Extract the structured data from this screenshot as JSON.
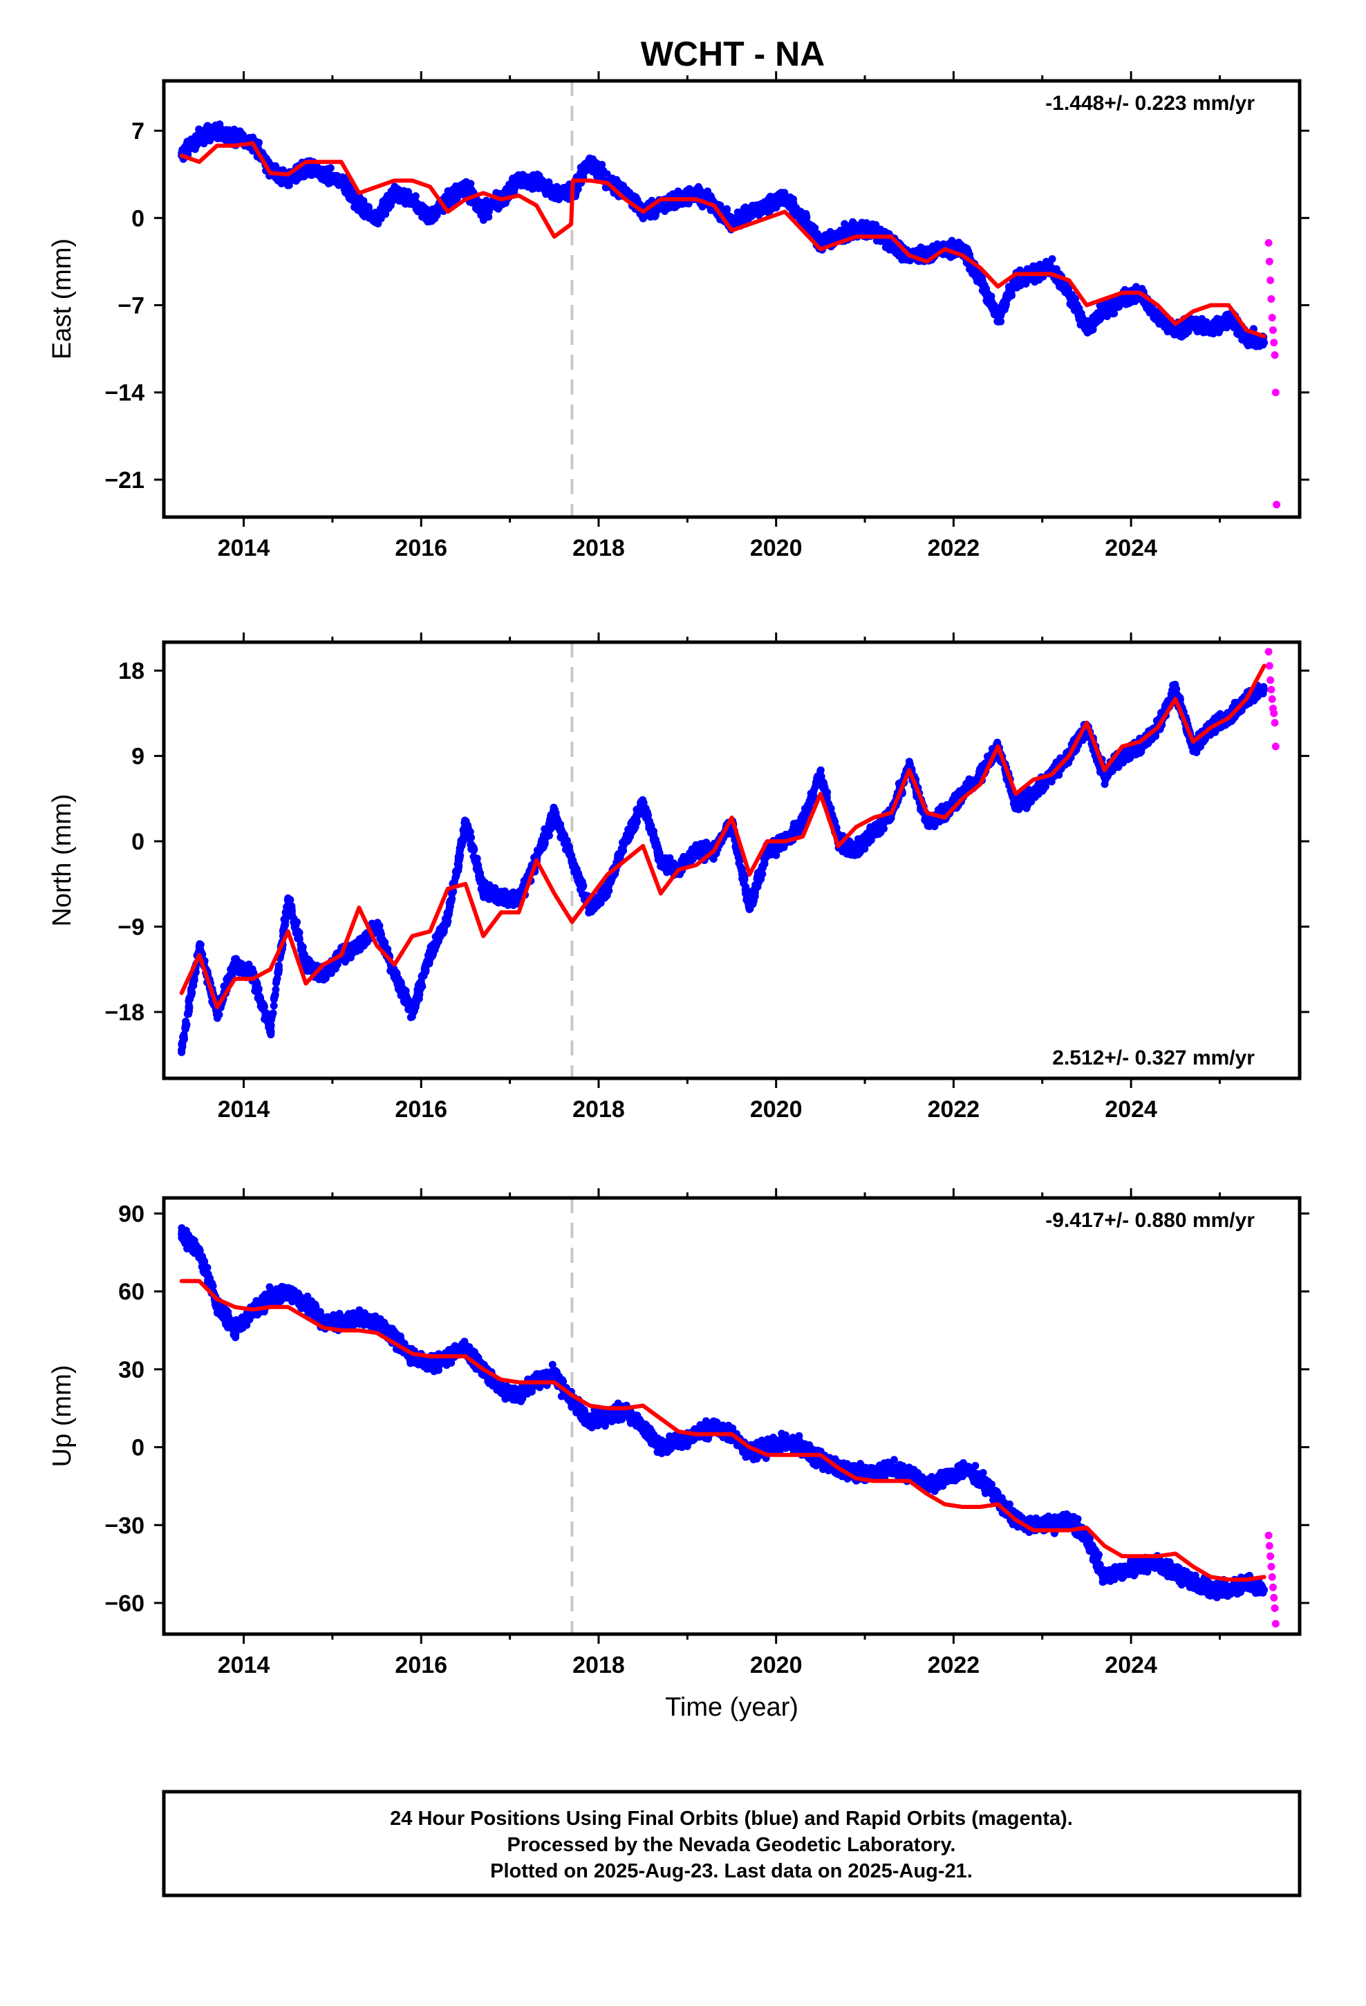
{
  "page": {
    "title": "WCHT - NA"
  },
  "footer": {
    "lines": [
      "24 Hour Positions Using Final Orbits (blue) and Rapid Orbits (magenta).",
      "Processed by the Nevada Geodetic Laboratory.",
      "Plotted on 2025-Aug-23. Last data on 2025-Aug-21."
    ]
  },
  "colors": {
    "final_orbits": "#0000ff",
    "rapid_orbits": "#ff00ff",
    "model": "#ff0000",
    "equipment_change": "#c8c8c8"
  },
  "chart_data": [
    {
      "type": "scatter",
      "component": "East",
      "title": "WCHT - NA",
      "xlabel": "",
      "ylabel": "East (mm)",
      "xlim": [
        2013.1,
        2025.9
      ],
      "ylim": [
        -24.0,
        11.0
      ],
      "xticks": [
        2014,
        2016,
        2018,
        2020,
        2022,
        2024
      ],
      "xtick_labels": [
        "2014",
        "2016",
        "2018",
        "2020",
        "2022",
        "2024"
      ],
      "yticks": [
        7,
        0,
        -7,
        -14,
        -21
      ],
      "ytick_labels": [
        "7",
        "0",
        "−7",
        "−14",
        "−21"
      ],
      "rate_text": "-1.448+/- 0.223 mm/yr",
      "rate_position": "top-right",
      "equipment_change_year": 2017.7,
      "series": [
        {
          "kind": "final_orbits",
          "x": [
            2013.3,
            2013.5,
            2013.7,
            2013.9,
            2014.1,
            2014.3,
            2014.5,
            2014.7,
            2014.9,
            2015.1,
            2015.3,
            2015.5,
            2015.7,
            2015.9,
            2016.1,
            2016.3,
            2016.5,
            2016.7,
            2016.9,
            2017.1,
            2017.3,
            2017.5,
            2017.7,
            2017.9,
            2018.1,
            2018.3,
            2018.5,
            2018.7,
            2018.9,
            2019.1,
            2019.3,
            2019.5,
            2019.7,
            2019.9,
            2020.1,
            2020.3,
            2020.5,
            2020.7,
            2020.9,
            2021.1,
            2021.3,
            2021.5,
            2021.7,
            2021.9,
            2022.1,
            2022.3,
            2022.5,
            2022.7,
            2022.9,
            2023.1,
            2023.3,
            2023.5,
            2023.7,
            2023.9,
            2024.1,
            2024.3,
            2024.5,
            2024.7,
            2024.9,
            2025.1,
            2025.3,
            2025.5
          ],
          "y": [
            5.0,
            6.5,
            7.0,
            6.5,
            6.0,
            4.0,
            3.0,
            4.0,
            3.5,
            3.0,
            1.0,
            0.0,
            2.0,
            1.5,
            0.0,
            1.5,
            2.5,
            0.5,
            1.5,
            3.0,
            3.0,
            2.0,
            2.0,
            4.5,
            3.0,
            2.0,
            0.5,
            1.0,
            1.5,
            2.0,
            1.0,
            -0.5,
            0.5,
            1.0,
            1.5,
            0.0,
            -2.0,
            -1.5,
            -1.0,
            -1.0,
            -2.0,
            -3.0,
            -3.0,
            -2.5,
            -2.5,
            -5.0,
            -8.0,
            -5.0,
            -4.5,
            -4.0,
            -6.0,
            -9.0,
            -7.5,
            -6.5,
            -6.0,
            -8.0,
            -9.0,
            -8.5,
            -9.0,
            -8.0,
            -9.5,
            -10.0
          ]
        },
        {
          "kind": "rapid_orbits",
          "x": [
            2025.55,
            2025.56,
            2025.57,
            2025.58,
            2025.59,
            2025.6,
            2025.61,
            2025.62,
            2025.63,
            2025.64
          ],
          "y": [
            -2.0,
            -3.5,
            -5.0,
            -6.5,
            -8.0,
            -9.0,
            -10.0,
            -11.0,
            -14.0,
            -23.0
          ]
        },
        {
          "kind": "model",
          "x": [
            2013.3,
            2013.5,
            2013.7,
            2013.9,
            2014.1,
            2014.3,
            2014.5,
            2014.7,
            2014.9,
            2015.1,
            2015.3,
            2015.5,
            2015.7,
            2015.9,
            2016.1,
            2016.3,
            2016.5,
            2016.7,
            2016.9,
            2017.1,
            2017.3,
            2017.5,
            2017.69,
            2017.71,
            2017.9,
            2018.1,
            2018.3,
            2018.5,
            2018.7,
            2018.9,
            2019.1,
            2019.3,
            2019.5,
            2019.7,
            2019.9,
            2020.1,
            2020.3,
            2020.5,
            2020.7,
            2020.9,
            2021.1,
            2021.3,
            2021.5,
            2021.7,
            2021.9,
            2022.1,
            2022.3,
            2022.5,
            2022.7,
            2022.9,
            2023.1,
            2023.3,
            2023.5,
            2023.7,
            2023.9,
            2024.1,
            2024.3,
            2024.5,
            2024.7,
            2024.9,
            2025.1,
            2025.3,
            2025.5
          ],
          "y": [
            5.0,
            4.5,
            5.8,
            5.8,
            6.0,
            3.6,
            3.5,
            4.5,
            4.5,
            4.5,
            2.0,
            2.5,
            3.0,
            3.0,
            2.5,
            0.5,
            1.5,
            2.0,
            1.5,
            1.8,
            1.0,
            -1.5,
            -0.5,
            3.0,
            3.0,
            2.8,
            1.5,
            0.5,
            1.5,
            1.5,
            1.5,
            1.0,
            -1.0,
            -0.5,
            0.0,
            0.5,
            -1.0,
            -2.5,
            -2.0,
            -1.5,
            -1.5,
            -1.5,
            -3.0,
            -3.5,
            -2.5,
            -3.0,
            -4.0,
            -5.5,
            -4.5,
            -4.5,
            -4.5,
            -5.0,
            -7.0,
            -6.5,
            -6.0,
            -6.0,
            -7.0,
            -8.5,
            -7.5,
            -7.0,
            -7.0,
            -9.0,
            -9.5
          ]
        }
      ]
    },
    {
      "type": "scatter",
      "component": "North",
      "xlabel": "",
      "ylabel": "North (mm)",
      "xlim": [
        2013.1,
        2025.9
      ],
      "ylim": [
        -25.0,
        21.0
      ],
      "xticks": [
        2014,
        2016,
        2018,
        2020,
        2022,
        2024
      ],
      "xtick_labels": [
        "2014",
        "2016",
        "2018",
        "2020",
        "2022",
        "2024"
      ],
      "yticks": [
        18,
        9,
        0,
        -9,
        -18
      ],
      "ytick_labels": [
        "18",
        "9",
        "0",
        "−9",
        "−18"
      ],
      "rate_text": "2.512+/- 0.327 mm/yr",
      "rate_position": "bottom-right",
      "equipment_change_year": 2017.7,
      "series": [
        {
          "kind": "final_orbits",
          "x": [
            2013.3,
            2013.5,
            2013.7,
            2013.9,
            2014.1,
            2014.3,
            2014.5,
            2014.7,
            2014.9,
            2015.1,
            2015.3,
            2015.5,
            2015.7,
            2015.9,
            2016.1,
            2016.3,
            2016.5,
            2016.7,
            2016.9,
            2017.1,
            2017.3,
            2017.5,
            2017.7,
            2017.9,
            2018.1,
            2018.3,
            2018.5,
            2018.7,
            2018.9,
            2019.1,
            2019.3,
            2019.5,
            2019.7,
            2019.9,
            2020.1,
            2020.3,
            2020.5,
            2020.7,
            2020.9,
            2021.1,
            2021.3,
            2021.5,
            2021.7,
            2021.9,
            2022.1,
            2022.3,
            2022.5,
            2022.7,
            2022.9,
            2023.1,
            2023.3,
            2023.5,
            2023.7,
            2023.9,
            2024.1,
            2024.3,
            2024.5,
            2024.7,
            2024.9,
            2025.1,
            2025.3,
            2025.5
          ],
          "y": [
            -22.0,
            -11.0,
            -18.0,
            -13.0,
            -14.0,
            -20.0,
            -6.0,
            -13.0,
            -14.0,
            -12.0,
            -11.0,
            -9.0,
            -14.0,
            -18.0,
            -12.0,
            -8.0,
            2.0,
            -5.0,
            -6.0,
            -6.0,
            -2.0,
            3.0,
            -2.0,
            -7.0,
            -5.0,
            0.0,
            4.0,
            -2.0,
            -3.0,
            -1.0,
            -1.0,
            2.0,
            -7.0,
            -1.0,
            0.0,
            2.0,
            7.0,
            0.0,
            -1.0,
            1.0,
            3.0,
            8.0,
            2.0,
            3.0,
            5.0,
            7.0,
            10.0,
            4.0,
            5.0,
            7.0,
            9.0,
            12.0,
            7.0,
            9.0,
            10.0,
            12.0,
            16.0,
            10.0,
            12.0,
            13.0,
            15.0,
            16.0
          ]
        },
        {
          "kind": "rapid_orbits",
          "x": [
            2025.55,
            2025.56,
            2025.57,
            2025.58,
            2025.59,
            2025.6,
            2025.61,
            2025.62,
            2025.63
          ],
          "y": [
            20.0,
            18.5,
            17.0,
            16.0,
            15.0,
            14.0,
            13.5,
            12.5,
            10.0
          ]
        },
        {
          "kind": "model",
          "x": [
            2013.3,
            2013.5,
            2013.7,
            2013.9,
            2014.1,
            2014.3,
            2014.5,
            2014.7,
            2014.9,
            2015.1,
            2015.3,
            2015.5,
            2015.7,
            2015.9,
            2016.1,
            2016.3,
            2016.5,
            2016.7,
            2016.9,
            2017.1,
            2017.3,
            2017.5,
            2017.7,
            2017.9,
            2018.1,
            2018.3,
            2018.5,
            2018.7,
            2018.9,
            2019.1,
            2019.3,
            2019.5,
            2019.7,
            2019.9,
            2020.1,
            2020.3,
            2020.5,
            2020.7,
            2020.9,
            2021.1,
            2021.3,
            2021.5,
            2021.7,
            2021.9,
            2022.1,
            2022.3,
            2022.5,
            2022.7,
            2022.9,
            2023.1,
            2023.3,
            2023.5,
            2023.7,
            2023.9,
            2024.1,
            2024.3,
            2024.5,
            2024.7,
            2024.9,
            2025.1,
            2025.3,
            2025.5
          ],
          "y": [
            -16.0,
            -12.0,
            -17.5,
            -14.5,
            -14.5,
            -13.5,
            -9.5,
            -15.0,
            -13.0,
            -12.0,
            -7.0,
            -11.0,
            -13.0,
            -10.0,
            -9.5,
            -5.0,
            -4.5,
            -10.0,
            -7.5,
            -7.5,
            -2.0,
            -5.5,
            -8.5,
            -6.0,
            -3.5,
            -2.0,
            -0.5,
            -5.5,
            -3.0,
            -2.5,
            -1.0,
            2.5,
            -3.5,
            0.0,
            0.0,
            0.5,
            5.0,
            -0.5,
            1.5,
            2.5,
            3.0,
            7.5,
            3.0,
            2.5,
            4.5,
            6.0,
            10.0,
            5.0,
            6.5,
            7.0,
            9.0,
            12.5,
            7.5,
            10.0,
            10.5,
            12.0,
            15.0,
            10.5,
            12.0,
            13.0,
            15.0,
            18.5
          ]
        }
      ]
    },
    {
      "type": "scatter",
      "component": "Up",
      "xlabel": "Time (year)",
      "ylabel": "Up (mm)",
      "xlim": [
        2013.1,
        2025.9
      ],
      "ylim": [
        -72.0,
        96.0
      ],
      "xticks": [
        2014,
        2016,
        2018,
        2020,
        2022,
        2024
      ],
      "xtick_labels": [
        "2014",
        "2016",
        "2018",
        "2020",
        "2022",
        "2024"
      ],
      "yticks": [
        90,
        60,
        30,
        0,
        -30,
        -60
      ],
      "ytick_labels": [
        "90",
        "60",
        "30",
        "0",
        "−30",
        "−60"
      ],
      "rate_text": "-9.417+/- 0.880 mm/yr",
      "rate_position": "top-right",
      "equipment_change_year": 2017.7,
      "series": [
        {
          "kind": "final_orbits",
          "x": [
            2013.3,
            2013.5,
            2013.7,
            2013.9,
            2014.1,
            2014.3,
            2014.5,
            2014.7,
            2014.9,
            2015.1,
            2015.3,
            2015.5,
            2015.7,
            2015.9,
            2016.1,
            2016.3,
            2016.5,
            2016.7,
            2016.9,
            2017.1,
            2017.3,
            2017.5,
            2017.7,
            2017.9,
            2018.1,
            2018.3,
            2018.5,
            2018.7,
            2018.9,
            2019.1,
            2019.3,
            2019.5,
            2019.7,
            2019.9,
            2020.1,
            2020.3,
            2020.5,
            2020.7,
            2020.9,
            2021.1,
            2021.3,
            2021.5,
            2021.7,
            2021.9,
            2022.1,
            2022.3,
            2022.5,
            2022.7,
            2022.9,
            2023.1,
            2023.3,
            2023.5,
            2023.7,
            2023.9,
            2024.1,
            2024.3,
            2024.5,
            2024.7,
            2024.9,
            2025.1,
            2025.3,
            2025.5
          ],
          "y": [
            82.0,
            75.0,
            55.0,
            45.0,
            52.0,
            58.0,
            60.0,
            55.0,
            48.0,
            48.0,
            50.0,
            48.0,
            42.0,
            35.0,
            32.0,
            35.0,
            38.0,
            30.0,
            22.0,
            20.0,
            25.0,
            28.0,
            18.0,
            10.0,
            12.0,
            14.0,
            8.0,
            0.0,
            2.0,
            5.0,
            8.0,
            5.0,
            -2.0,
            0.0,
            2.0,
            0.0,
            -5.0,
            -8.0,
            -10.0,
            -10.0,
            -8.0,
            -10.0,
            -15.0,
            -12.0,
            -8.0,
            -12.0,
            -20.0,
            -28.0,
            -30.0,
            -30.0,
            -28.0,
            -35.0,
            -50.0,
            -48.0,
            -45.0,
            -45.0,
            -48.0,
            -52.0,
            -55.0,
            -55.0,
            -52.0,
            -55.0
          ]
        },
        {
          "kind": "rapid_orbits",
          "x": [
            2025.55,
            2025.56,
            2025.57,
            2025.58,
            2025.59,
            2025.6,
            2025.61,
            2025.62,
            2025.63
          ],
          "y": [
            -34.0,
            -38.0,
            -42.0,
            -46.0,
            -50.0,
            -54.0,
            -58.0,
            -62.0,
            -68.0
          ]
        },
        {
          "kind": "model",
          "x": [
            2013.3,
            2013.5,
            2013.7,
            2013.9,
            2014.1,
            2014.3,
            2014.5,
            2014.7,
            2014.9,
            2015.1,
            2015.3,
            2015.5,
            2015.7,
            2015.9,
            2016.1,
            2016.3,
            2016.5,
            2016.7,
            2016.9,
            2017.1,
            2017.3,
            2017.5,
            2017.7,
            2017.9,
            2018.1,
            2018.3,
            2018.5,
            2018.7,
            2018.9,
            2019.1,
            2019.3,
            2019.5,
            2019.7,
            2019.9,
            2020.1,
            2020.3,
            2020.5,
            2020.7,
            2020.9,
            2021.1,
            2021.3,
            2021.5,
            2021.7,
            2021.9,
            2022.1,
            2022.3,
            2022.5,
            2022.7,
            2022.9,
            2023.1,
            2023.3,
            2023.5,
            2023.7,
            2023.9,
            2024.1,
            2024.3,
            2024.5,
            2024.7,
            2024.9,
            2025.1,
            2025.3,
            2025.5
          ],
          "y": [
            64.0,
            64.0,
            57.0,
            54.0,
            53.0,
            54.0,
            54.0,
            50.0,
            46.0,
            45.0,
            45.0,
            44.0,
            40.0,
            36.0,
            35.0,
            35.0,
            35.0,
            30.0,
            26.0,
            25.0,
            25.0,
            25.0,
            20.0,
            16.0,
            15.0,
            15.0,
            16.0,
            11.0,
            6.0,
            5.0,
            5.0,
            5.0,
            0.0,
            -3.0,
            -3.0,
            -3.0,
            -3.0,
            -8.0,
            -12.0,
            -13.0,
            -13.0,
            -13.0,
            -18.0,
            -22.0,
            -23.0,
            -23.0,
            -22.0,
            -28.0,
            -32.0,
            -32.0,
            -32.0,
            -31.0,
            -38.0,
            -42.0,
            -42.0,
            -42.0,
            -41.0,
            -46.0,
            -50.0,
            -51.0,
            -51.0,
            -50.0
          ]
        }
      ]
    }
  ]
}
